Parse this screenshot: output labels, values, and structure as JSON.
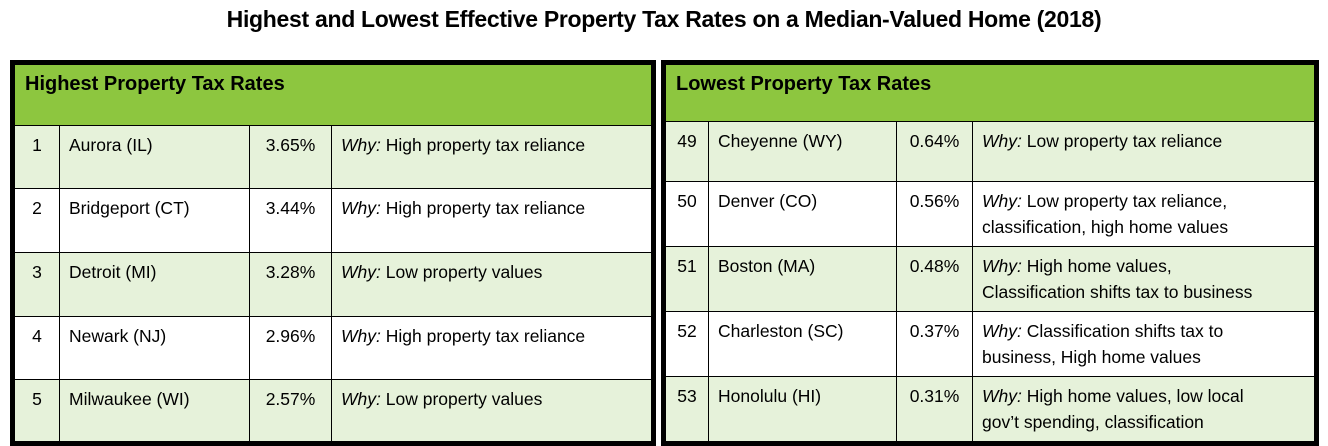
{
  "title": "Highest and Lowest Effective Property Tax Rates on a Median-Valued Home (2018)",
  "colors": {
    "header_green": "#8DC63F",
    "row_green": "#E6F2DA",
    "row_white": "#FFFFFF",
    "border": "#000000",
    "text": "#000000"
  },
  "tables": [
    {
      "header": "Highest Property Tax Rates",
      "rows": [
        {
          "rank": "1",
          "city": "Aurora (IL)",
          "rate": "3.65%",
          "why_label": "Why:",
          "why": "High property tax reliance"
        },
        {
          "rank": "2",
          "city": "Bridgeport (CT)",
          "rate": "3.44%",
          "why_label": "Why:",
          "why": "High property tax reliance"
        },
        {
          "rank": "3",
          "city": "Detroit (MI)",
          "rate": "3.28%",
          "why_label": "Why:",
          "why": "Low property values"
        },
        {
          "rank": "4",
          "city": "Newark (NJ)",
          "rate": "2.96%",
          "why_label": "Why:",
          "why": "High property tax reliance"
        },
        {
          "rank": "5",
          "city": "Milwaukee (WI)",
          "rate": "2.57%",
          "why_label": "Why:",
          "why": "Low property values"
        }
      ]
    },
    {
      "header": "Lowest Property Tax Rates",
      "rows": [
        {
          "rank": "49",
          "city": "Cheyenne (WY)",
          "rate": "0.64%",
          "why_label": "Why:",
          "why": "Low property tax reliance"
        },
        {
          "rank": "50",
          "city": "Denver (CO)",
          "rate": "0.56%",
          "why_label": "Why:",
          "why": "Low property tax reliance,\nclassification, high home values"
        },
        {
          "rank": "51",
          "city": "Boston (MA)",
          "rate": "0.48%",
          "why_label": "Why:",
          "why": "High home values,\nClassification shifts tax to business"
        },
        {
          "rank": "52",
          "city": "Charleston (SC)",
          "rate": "0.37%",
          "why_label": "Why:",
          "why": "Classification shifts tax to\nbusiness, High home values"
        },
        {
          "rank": "53",
          "city": "Honolulu (HI)",
          "rate": "0.31%",
          "why_label": "Why:",
          "why": "High home values, low local\ngov’t spending, classification"
        }
      ]
    }
  ]
}
